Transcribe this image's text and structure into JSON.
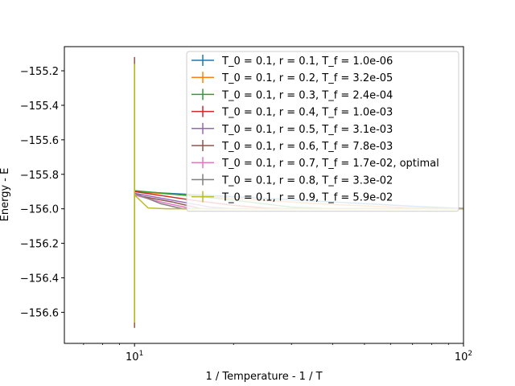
{
  "chart_data": {
    "type": "line",
    "title": "",
    "xlabel": "1 / Temperature - 1 / T",
    "ylabel": "Energy - E",
    "xscale": "log",
    "xlim": [
      6.12,
      100
    ],
    "ylim": [
      -156.78,
      -155.06
    ],
    "x_ticks": [
      {
        "value": 10,
        "base": "10",
        "exp": "1"
      },
      {
        "value": 100,
        "base": "10",
        "exp": "2"
      }
    ],
    "y_ticks": [
      {
        "value": -155.2,
        "label": "−155.2"
      },
      {
        "value": -155.4,
        "label": "−155.4"
      },
      {
        "value": -155.6,
        "label": "−155.6"
      },
      {
        "value": -155.8,
        "label": "−155.8"
      },
      {
        "value": -156.0,
        "label": "−156.0"
      },
      {
        "value": -156.2,
        "label": "−156.2"
      },
      {
        "value": -156.4,
        "label": "−156.4"
      },
      {
        "value": -156.6,
        "label": "−156.6"
      }
    ],
    "grid": false,
    "legend_position": "upper-right",
    "errorbars": [
      {
        "series": 5,
        "x": 10,
        "low": -156.69,
        "high": -155.12,
        "color": "#8c564b"
      },
      {
        "series": 8,
        "x": 10,
        "low": -156.66,
        "high": -155.16,
        "color": "#bcbd22"
      }
    ],
    "series": [
      {
        "name": "T_0 = 0.1, r = 0.1, T_f = 1.0e-06",
        "color": "#1f77b4",
        "points": [
          [
            10,
            -155.9
          ],
          [
            20,
            -155.93
          ],
          [
            40,
            -155.96
          ],
          [
            70,
            -155.985
          ],
          [
            100,
            -155.998
          ]
        ]
      },
      {
        "name": "T_0 = 0.1, r = 0.2, T_f = 3.2e-05",
        "color": "#ff7f0e",
        "points": [
          [
            10,
            -155.9
          ],
          [
            20,
            -155.94
          ],
          [
            40,
            -155.975
          ],
          [
            70,
            -155.995
          ],
          [
            100,
            -156.0
          ]
        ]
      },
      {
        "name": "T_0 = 0.1, r = 0.3, T_f = 2.4e-04",
        "color": "#2ca02c",
        "points": [
          [
            10,
            -155.895
          ],
          [
            14,
            -155.92
          ],
          [
            20,
            -155.95
          ],
          [
            30,
            -155.99
          ],
          [
            40,
            -156.0
          ],
          [
            100,
            -156.0
          ]
        ]
      },
      {
        "name": "T_0 = 0.1, r = 0.4, T_f = 1.0e-03",
        "color": "#d62728",
        "points": [
          [
            10,
            -155.9
          ],
          [
            15,
            -155.95
          ],
          [
            20,
            -155.98
          ],
          [
            25,
            -155.995
          ],
          [
            30,
            -156.0
          ],
          [
            100,
            -156.0
          ]
        ]
      },
      {
        "name": "T_0 = 0.1, r = 0.5, T_f = 3.1e-03",
        "color": "#9467bd",
        "points": [
          [
            10,
            -155.91
          ],
          [
            13,
            -155.95
          ],
          [
            17,
            -155.99
          ],
          [
            20,
            -156.0
          ],
          [
            100,
            -156.0
          ]
        ]
      },
      {
        "name": "T_0 = 0.1, r = 0.6, T_f = 7.8e-03",
        "color": "#8c564b",
        "points": [
          [
            10,
            -155.92
          ],
          [
            13,
            -155.96
          ],
          [
            16,
            -156.0
          ],
          [
            100,
            -156.0
          ]
        ]
      },
      {
        "name": "T_0 = 0.1, r = 0.7, T_f = 1.7e-02, optimal",
        "color": "#e377c2",
        "points": [
          [
            10,
            -155.92
          ],
          [
            12,
            -155.96
          ],
          [
            15,
            -156.0
          ],
          [
            100,
            -156.0
          ]
        ]
      },
      {
        "name": "T_0 = 0.1, r = 0.8, T_f = 3.3e-02",
        "color": "#7f7f7f",
        "points": [
          [
            10,
            -155.91
          ],
          [
            12,
            -155.97
          ],
          [
            14,
            -156.0
          ],
          [
            100,
            -156.0
          ]
        ]
      },
      {
        "name": "T_0 = 0.1, r = 0.9, T_f = 5.9e-02",
        "color": "#bcbd22",
        "points": [
          [
            10,
            -155.92
          ],
          [
            11,
            -155.995
          ],
          [
            12.5,
            -156.0
          ],
          [
            100,
            -156.0
          ]
        ]
      }
    ]
  }
}
